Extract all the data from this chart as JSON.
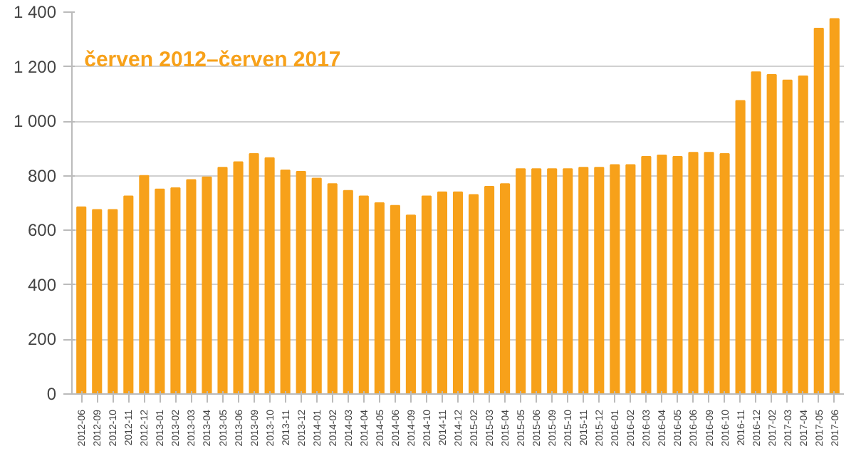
{
  "chart_data": {
    "type": "bar",
    "title": "červen 2012–červen 2017",
    "categories": [
      "2012-06",
      "2012-09",
      "2012-10",
      "2012-11",
      "2012-12",
      "2013-01",
      "2013-02",
      "2013-03",
      "2013-04",
      "2013-05",
      "2013-06",
      "2013-09",
      "2013-10",
      "2013-11",
      "2013-12",
      "2014-01",
      "2014-02",
      "2014-03",
      "2014-04",
      "2014-05",
      "2014-06",
      "2014-09",
      "2014-10",
      "2014-11",
      "2014-12",
      "2015-02",
      "2015-03",
      "2015-04",
      "2015-05",
      "2015-06",
      "2015-09",
      "2015-10",
      "2015-11",
      "2015-12",
      "2016-01",
      "2016-02",
      "2016-03",
      "2016-04",
      "2016-05",
      "2016-06",
      "2016-09",
      "2016-10",
      "2016-11",
      "2016-12",
      "2017-02",
      "2017-03",
      "2017-04",
      "2017-05",
      "2017-06"
    ],
    "values": [
      685,
      675,
      675,
      725,
      800,
      750,
      755,
      785,
      795,
      830,
      850,
      880,
      865,
      820,
      815,
      790,
      770,
      745,
      725,
      700,
      690,
      655,
      725,
      740,
      740,
      730,
      760,
      770,
      825,
      825,
      825,
      825,
      830,
      830,
      840,
      840,
      870,
      875,
      870,
      885,
      885,
      880,
      1075,
      1180,
      1170,
      1150,
      1165,
      1340,
      1375
    ],
    "color": "#f7a11a",
    "ylim": [
      0,
      1400
    ],
    "yticks": [
      0,
      200,
      400,
      600,
      {
        "value": 800,
        "label": "800"
      },
      {
        "value": 1000,
        "label": "1 000"
      },
      {
        "value": 1200,
        "label": "1 200"
      },
      {
        "value": 1400,
        "label": "1 400"
      }
    ],
    "grid": "y"
  }
}
